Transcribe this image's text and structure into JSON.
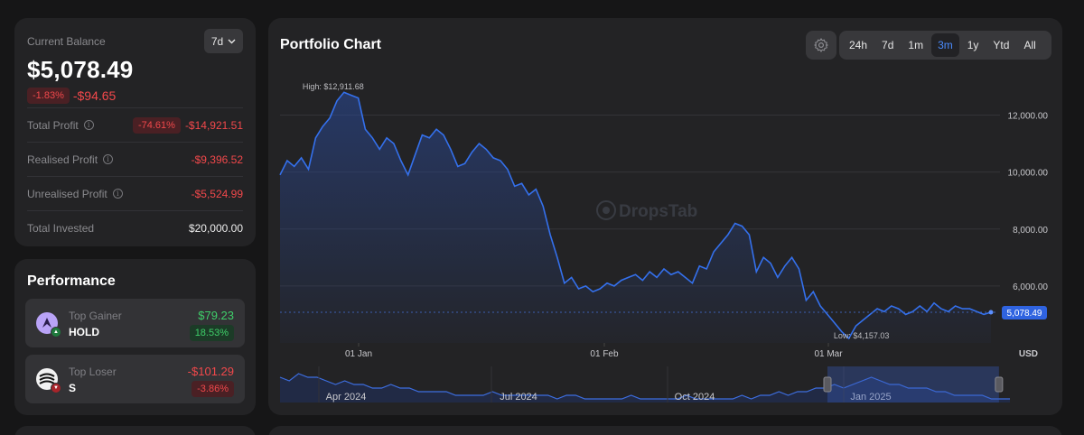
{
  "balance": {
    "label": "Current Balance",
    "period": "7d",
    "value": "$5,078.49",
    "change_pct": "-1.83%",
    "change_amt": "-$94.65",
    "rows": [
      {
        "label": "Total Profit",
        "pct": "-74.61%",
        "value": "-$14,921.51"
      },
      {
        "label": "Realised Profit",
        "value": "-$9,396.52"
      },
      {
        "label": "Unrealised Profit",
        "value": "-$5,524.99"
      },
      {
        "label": "Total Invested",
        "value": "$20,000.00"
      }
    ]
  },
  "performance": {
    "title": "Performance",
    "gainer": {
      "kind": "Top Gainer",
      "symbol": "HOLD",
      "amount": "$79.23",
      "pct": "18.53%"
    },
    "loser": {
      "kind": "Top Loser",
      "symbol": "S",
      "amount": "-$101.29",
      "pct": "-3.86%"
    }
  },
  "chart": {
    "title": "Portfolio Chart",
    "timeframes": [
      "24h",
      "7d",
      "1m",
      "3m",
      "1y",
      "Ytd",
      "All"
    ],
    "active_timeframe": "3m",
    "watermark": "DropsTab",
    "currency": "USD",
    "high_label": "High: $12,911.68",
    "low_label": "Low: $4,157.03",
    "current_label": "5,078.49"
  },
  "chart_data": {
    "type": "area",
    "y_ticks": [
      "12,000.00",
      "10,000.00",
      "8,000.00",
      "6,000.00"
    ],
    "x_ticks": [
      "01 Jan",
      "01 Feb",
      "01 Mar"
    ],
    "ylim": [
      4000,
      13000
    ],
    "x_domain": [
      0,
      100
    ],
    "series": [
      {
        "x": [
          0,
          1,
          2,
          3,
          4,
          5,
          6,
          7,
          8,
          9,
          10,
          11,
          12,
          13,
          14,
          15,
          16,
          17,
          18,
          19,
          20,
          21,
          22,
          23,
          24,
          25,
          26,
          27,
          28,
          29,
          30,
          31,
          32,
          33,
          34,
          35,
          36,
          37,
          38,
          39,
          40,
          41,
          42,
          43,
          44,
          45,
          46,
          47,
          48,
          49,
          50,
          51,
          52,
          53,
          54,
          55,
          56,
          57,
          58,
          59,
          60,
          61,
          62,
          63,
          64,
          65,
          66,
          67,
          68,
          69,
          70,
          71,
          72,
          73,
          74,
          75,
          76,
          77,
          78,
          79,
          80,
          81,
          82,
          83,
          84,
          85,
          86,
          87,
          88,
          89,
          90,
          91,
          92,
          93,
          94,
          95,
          96,
          97,
          98,
          99,
          100
        ],
        "y": [
          9900,
          10400,
          10200,
          10500,
          10100,
          11200,
          11600,
          11900,
          12500,
          12800,
          12700,
          12600,
          11500,
          11200,
          10800,
          11200,
          11000,
          10400,
          9900,
          10600,
          11300,
          11200,
          11500,
          11300,
          10800,
          10200,
          10300,
          10700,
          11000,
          10800,
          10500,
          10400,
          10100,
          9500,
          9600,
          9200,
          9400,
          8800,
          7800,
          7000,
          6100,
          6300,
          5900,
          6000,
          5800,
          5900,
          6100,
          6000,
          6200,
          6300,
          6400,
          6200,
          6500,
          6300,
          6600,
          6400,
          6500,
          6300,
          6100,
          6700,
          6600,
          7200,
          7500,
          7800,
          8200,
          8100,
          7800,
          6500,
          7000,
          6800,
          6300,
          6700,
          7000,
          6600,
          5500,
          5800,
          5300,
          5000,
          4700,
          4400,
          4157,
          4600,
          4800,
          5000,
          5200,
          5100,
          5300,
          5200,
          5000,
          5100,
          5300,
          5100,
          5400,
          5200,
          5100,
          5300,
          5200,
          5200,
          5100,
          5000,
          5078
        ]
      }
    ]
  },
  "navigator": {
    "labels": [
      "Apr 2024",
      "Jul 2024",
      "Oct 2024",
      "Jan 2025"
    ],
    "values": [
      7,
      6,
      8,
      7,
      7,
      6,
      5,
      6,
      5,
      5,
      4,
      4,
      5,
      4,
      4,
      3,
      3,
      3,
      3,
      2,
      2,
      2,
      2,
      3,
      2,
      2,
      2,
      2,
      2,
      2,
      1,
      2,
      2,
      1,
      1,
      1,
      1,
      1,
      2,
      1,
      1,
      1,
      1,
      1,
      2,
      1,
      1,
      1,
      1,
      1,
      2,
      1,
      2,
      2,
      3,
      2,
      3,
      3,
      4,
      4,
      5,
      4,
      5,
      6,
      7,
      6,
      5,
      5,
      4,
      4,
      4,
      3,
      3,
      2,
      2,
      2,
      2,
      1,
      1,
      1
    ],
    "window": [
      0.75,
      0.985
    ]
  },
  "colors": {
    "accent": "#3470ec",
    "active_tf": "#4a8cff",
    "negative": "#f2484b",
    "positive": "#3fcf6a"
  }
}
